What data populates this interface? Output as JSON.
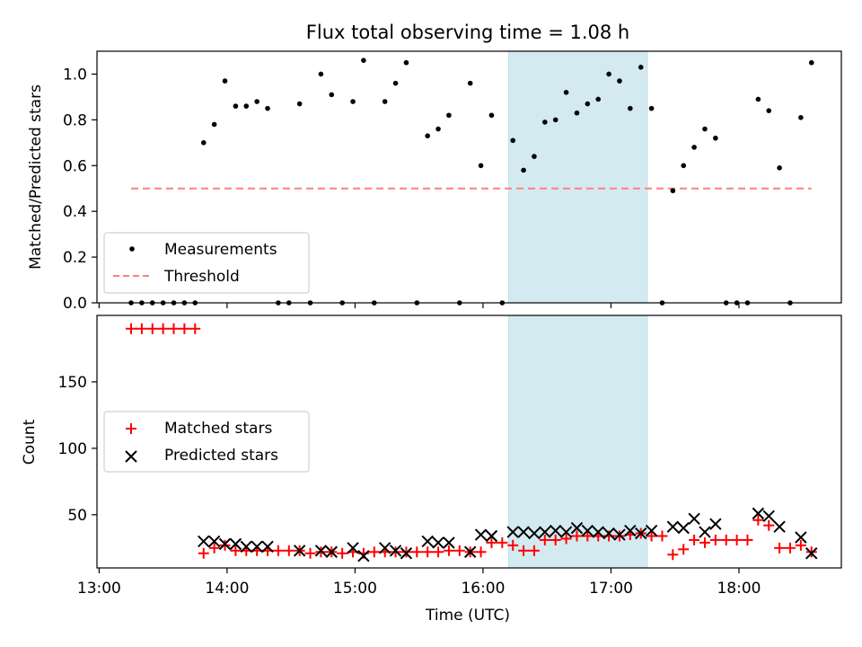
{
  "chart_data": {
    "title": "Flux total observing time = 1.08 h",
    "xlabel": "Time (UTC)",
    "x_ticks": [
      "13:00",
      "14:00",
      "15:00",
      "16:00",
      "17:00",
      "18:00"
    ],
    "highlight_span": {
      "start": "16:12",
      "end": "17:17",
      "color": "#d3eaf1"
    },
    "panels": [
      {
        "id": "ratio",
        "type": "scatter",
        "ylabel": "Matched/Predicted stars",
        "ylim": [
          0,
          1.1
        ],
        "y_ticks": [
          "0.0",
          "0.2",
          "0.4",
          "0.6",
          "0.8",
          "1.0"
        ],
        "legend_position": "lower-left",
        "series": [
          {
            "name": "Measurements",
            "marker": "dot",
            "color": "#000000",
            "points": [
              [
                "13:15",
                0
              ],
              [
                "13:20",
                0
              ],
              [
                "13:25",
                0
              ],
              [
                "13:30",
                0
              ],
              [
                "13:35",
                0
              ],
              [
                "13:40",
                0
              ],
              [
                "13:45",
                0
              ],
              [
                "13:49",
                0.7
              ],
              [
                "13:54",
                0.78
              ],
              [
                "13:59",
                0.97
              ],
              [
                "14:04",
                0.86
              ],
              [
                "14:09",
                0.86
              ],
              [
                "14:14",
                0.88
              ],
              [
                "14:19",
                0.85
              ],
              [
                "14:24",
                0
              ],
              [
                "14:29",
                0
              ],
              [
                "14:34",
                0.87
              ],
              [
                "14:39",
                0
              ],
              [
                "14:44",
                1.0
              ],
              [
                "14:49",
                0.91
              ],
              [
                "14:54",
                0
              ],
              [
                "14:59",
                0.88
              ],
              [
                "15:04",
                1.06
              ],
              [
                "15:09",
                0
              ],
              [
                "15:14",
                0.88
              ],
              [
                "15:19",
                0.96
              ],
              [
                "15:24",
                1.05
              ],
              [
                "15:29",
                0
              ],
              [
                "15:34",
                0.73
              ],
              [
                "15:39",
                0.76
              ],
              [
                "15:44",
                0.82
              ],
              [
                "15:49",
                0
              ],
              [
                "15:54",
                0.96
              ],
              [
                "15:59",
                0.6
              ],
              [
                "16:04",
                0.82
              ],
              [
                "16:09",
                0
              ],
              [
                "16:14",
                0.71
              ],
              [
                "16:19",
                0.58
              ],
              [
                "16:24",
                0.64
              ],
              [
                "16:29",
                0.79
              ],
              [
                "16:34",
                0.8
              ],
              [
                "16:39",
                0.92
              ],
              [
                "16:44",
                0.83
              ],
              [
                "16:49",
                0.87
              ],
              [
                "16:54",
                0.89
              ],
              [
                "16:59",
                1.0
              ],
              [
                "17:04",
                0.97
              ],
              [
                "17:09",
                0.85
              ],
              [
                "17:14",
                1.03
              ],
              [
                "17:19",
                0.85
              ],
              [
                "17:24",
                0
              ],
              [
                "17:29",
                0.49
              ],
              [
                "17:34",
                0.6
              ],
              [
                "17:39",
                0.68
              ],
              [
                "17:44",
                0.76
              ],
              [
                "17:49",
                0.72
              ],
              [
                "17:54",
                0
              ],
              [
                "17:59",
                0
              ],
              [
                "18:04",
                0
              ],
              [
                "18:09",
                0.89
              ],
              [
                "18:14",
                0.84
              ],
              [
                "18:19",
                0.59
              ],
              [
                "18:24",
                0
              ],
              [
                "18:29",
                0.81
              ],
              [
                "18:34",
                1.05
              ]
            ]
          },
          {
            "name": "Threshold",
            "type": "line",
            "style": "dashed",
            "color": "#ff7f7f",
            "points": [
              [
                "13:15",
                0.5
              ],
              [
                "18:34",
                0.5
              ]
            ]
          }
        ]
      },
      {
        "id": "counts",
        "type": "scatter",
        "ylabel": "Count",
        "ylim": [
          10,
          200
        ],
        "y_ticks": [
          "50",
          "100",
          "150"
        ],
        "legend_position": "center-left",
        "series": [
          {
            "name": "Matched stars",
            "marker": "plus",
            "color": "#ff0000",
            "points": [
              [
                "13:15",
                190
              ],
              [
                "13:20",
                190
              ],
              [
                "13:25",
                190
              ],
              [
                "13:30",
                190
              ],
              [
                "13:35",
                190
              ],
              [
                "13:40",
                190
              ],
              [
                "13:45",
                190
              ],
              [
                "13:49",
                21
              ],
              [
                "13:54",
                25
              ],
              [
                "13:59",
                27
              ],
              [
                "14:04",
                23
              ],
              [
                "14:09",
                23
              ],
              [
                "14:14",
                23
              ],
              [
                "14:19",
                23
              ],
              [
                "14:24",
                23
              ],
              [
                "14:29",
                23
              ],
              [
                "14:34",
                23
              ],
              [
                "14:39",
                21
              ],
              [
                "14:44",
                22
              ],
              [
                "14:49",
                22
              ],
              [
                "14:54",
                21
              ],
              [
                "14:59",
                22
              ],
              [
                "15:04",
                21
              ],
              [
                "15:09",
                22
              ],
              [
                "15:14",
                22
              ],
              [
                "15:19",
                22
              ],
              [
                "15:24",
                22
              ],
              [
                "15:29",
                22
              ],
              [
                "15:34",
                22
              ],
              [
                "15:39",
                22
              ],
              [
                "15:44",
                23
              ],
              [
                "15:49",
                23
              ],
              [
                "15:54",
                22
              ],
              [
                "15:59",
                22
              ],
              [
                "16:04",
                29
              ],
              [
                "16:09",
                29
              ],
              [
                "16:14",
                27
              ],
              [
                "16:19",
                23
              ],
              [
                "16:24",
                23
              ],
              [
                "16:29",
                31
              ],
              [
                "16:34",
                31
              ],
              [
                "16:39",
                32
              ],
              [
                "16:44",
                34
              ],
              [
                "16:49",
                34
              ],
              [
                "16:54",
                34
              ],
              [
                "16:59",
                34
              ],
              [
                "17:04",
                34
              ],
              [
                "17:09",
                35
              ],
              [
                "17:14",
                36
              ],
              [
                "17:19",
                34
              ],
              [
                "17:24",
                34
              ],
              [
                "17:29",
                20
              ],
              [
                "17:34",
                24
              ],
              [
                "17:39",
                31
              ],
              [
                "17:44",
                29
              ],
              [
                "17:49",
                31
              ],
              [
                "17:54",
                31
              ],
              [
                "17:59",
                31
              ],
              [
                "18:04",
                31
              ],
              [
                "18:09",
                46
              ],
              [
                "18:14",
                42
              ],
              [
                "18:19",
                25
              ],
              [
                "18:24",
                25
              ],
              [
                "18:29",
                27
              ],
              [
                "18:34",
                22
              ]
            ]
          },
          {
            "name": "Predicted stars",
            "marker": "x",
            "color": "#000000",
            "points": [
              [
                "13:49",
                30
              ],
              [
                "13:54",
                30
              ],
              [
                "13:59",
                28
              ],
              [
                "14:04",
                28
              ],
              [
                "14:09",
                26
              ],
              [
                "14:14",
                26
              ],
              [
                "14:19",
                26
              ],
              [
                "14:34",
                23
              ],
              [
                "14:44",
                23
              ],
              [
                "14:49",
                22
              ],
              [
                "14:59",
                25
              ],
              [
                "15:04",
                19
              ],
              [
                "15:14",
                25
              ],
              [
                "15:19",
                23
              ],
              [
                "15:24",
                21
              ],
              [
                "15:34",
                30
              ],
              [
                "15:39",
                29
              ],
              [
                "15:44",
                29
              ],
              [
                "15:54",
                22
              ],
              [
                "15:59",
                35
              ],
              [
                "16:04",
                34
              ],
              [
                "16:14",
                37
              ],
              [
                "16:19",
                37
              ],
              [
                "16:24",
                36
              ],
              [
                "16:29",
                37
              ],
              [
                "16:34",
                38
              ],
              [
                "16:39",
                37
              ],
              [
                "16:44",
                40
              ],
              [
                "16:49",
                38
              ],
              [
                "16:54",
                37
              ],
              [
                "16:59",
                36
              ],
              [
                "17:04",
                35
              ],
              [
                "17:09",
                38
              ],
              [
                "17:14",
                36
              ],
              [
                "17:19",
                38
              ],
              [
                "17:29",
                41
              ],
              [
                "17:34",
                40
              ],
              [
                "17:39",
                47
              ],
              [
                "17:44",
                37
              ],
              [
                "17:49",
                43
              ],
              [
                "18:09",
                51
              ],
              [
                "18:14",
                49
              ],
              [
                "18:19",
                41
              ],
              [
                "18:29",
                33
              ],
              [
                "18:34",
                21
              ]
            ]
          }
        ]
      }
    ]
  }
}
